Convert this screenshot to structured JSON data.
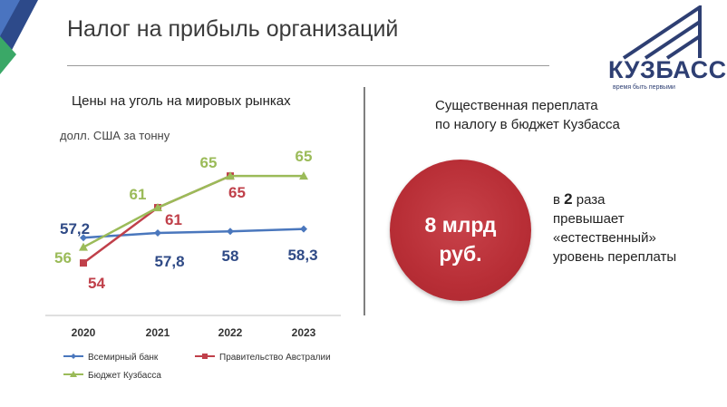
{
  "slide": {
    "title": "Налог на прибыль организаций"
  },
  "logo": {
    "name": "КУЗБАСС",
    "tagline": "время быть первыми"
  },
  "chart_data": {
    "type": "line",
    "title": "Цены на уголь на мировых рынках",
    "ylabel": "долл. США за тонну",
    "categories": [
      "2020",
      "2021",
      "2022",
      "2023"
    ],
    "ylim": [
      50,
      68
    ],
    "legend_position": "bottom",
    "grid": false,
    "series": [
      {
        "name": "Всемирный банк",
        "color": "#4a77bd",
        "label_color": "#2f4a86",
        "marker": "diamond",
        "values": [
          57.2,
          57.8,
          58,
          58.3
        ],
        "labels": [
          "57,2",
          "57,8",
          "58",
          "58,3"
        ]
      },
      {
        "name": "Правительство Австралии",
        "color": "#c0404a",
        "label_color": "#c0404a",
        "marker": "square",
        "values": [
          54,
          61,
          65,
          null
        ],
        "labels": [
          "54",
          "61",
          "65",
          ""
        ]
      },
      {
        "name": "Бюджет Кузбасса",
        "color": "#9bbb59",
        "label_color": "#9bbb59",
        "marker": "triangle",
        "values": [
          56,
          61,
          65,
          65
        ],
        "labels": [
          "56",
          "61",
          "65",
          "65"
        ]
      }
    ]
  },
  "right_panel": {
    "title_line1": "Существенная переплата",
    "title_line2": "по налогу в бюджет Кузбасса",
    "circle_line1": "8 млрд",
    "circle_line2": "руб.",
    "note_prefix": "в",
    "note_bold": "2",
    "note_suffix": "раза",
    "note_line2": "превышает",
    "note_line3": "«естественный»",
    "note_line4": "уровень переплаты"
  },
  "colors": {
    "accent_red": "#b82e36",
    "brand_blue": "#2e3f73"
  }
}
